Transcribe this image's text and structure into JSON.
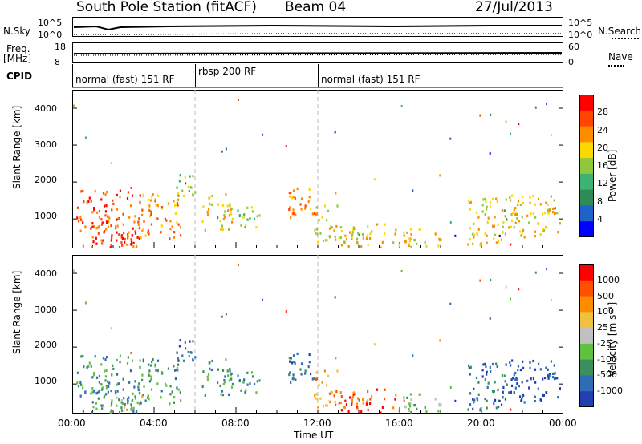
{
  "header": {
    "station": "South Pole Station (fitACF)",
    "beam": "Beam 04",
    "date": "27/Jul/2013"
  },
  "top_strip": {
    "left_label_1": "N.Sky",
    "left_label_2": "Freq.",
    "left_label_3": "[MHz]",
    "cpid_label": "CPID",
    "right_label_1": "N.Search",
    "right_label_2": "Nave",
    "sky_ticks": [
      "10^5",
      "10^0"
    ],
    "search_ticks": [
      "10^5",
      "10^0"
    ],
    "freq_ticks": [
      "18",
      "8"
    ],
    "nave_ticks": [
      "60",
      "0"
    ]
  },
  "cpid_segments": [
    {
      "label": "normal (fast) 151 RF",
      "start_hour": 0
    },
    {
      "label": "rbsp 200 RF",
      "start_hour": 6
    },
    {
      "label": "normal (fast) 151 RF",
      "start_hour": 12
    }
  ],
  "x_axis": {
    "label": "Time UT",
    "ticks": [
      "00:00",
      "04:00",
      "08:00",
      "12:00",
      "16:00",
      "20:00",
      "00:00"
    ],
    "range_hours": [
      0,
      24
    ]
  },
  "panels": [
    {
      "ylabel": "Slant Range [km]",
      "yticks": [
        "1000",
        "2000",
        "3000",
        "4000"
      ],
      "colorbar_label": "Power [dB]",
      "colorbar_ticks": [
        "28",
        "24",
        "20",
        "16",
        "12",
        "8",
        "4"
      ]
    },
    {
      "ylabel": "Slant Range [km]",
      "yticks": [
        "1000",
        "2000",
        "3000",
        "4000"
      ],
      "colorbar_label": "Velocity [m s⁻¹]",
      "colorbar_ticks": [
        "1000",
        "500",
        "100",
        "25",
        "-25",
        "-100",
        "-500",
        "-1000"
      ]
    }
  ],
  "chart_data": {
    "type": "heatmap",
    "xlim": [
      0,
      24
    ],
    "ylim": [
      200,
      4500
    ],
    "mode_change_hours": [
      6,
      12
    ],
    "power_colors": [
      "#0000ff",
      "#1e64c8",
      "#2e8b57",
      "#3cb371",
      "#90c83c",
      "#ffd700",
      "#ff8c00",
      "#ff4500",
      "#ff0000"
    ],
    "velocity_colors": [
      "#2040b0",
      "#2e6db4",
      "#3a8f5a",
      "#60c040",
      "#c0c0c0",
      "#f0c040",
      "#ff8c00",
      "#ff5000",
      "#ff0000"
    ],
    "echo_regions": [
      {
        "t0": 0.2,
        "t1": 3.3,
        "r0": 250,
        "r1": 1800,
        "power_level": 7,
        "velocity_level": 2
      },
      {
        "t0": 1.5,
        "t1": 3.5,
        "r0": 250,
        "r1": 700,
        "power_level": 8,
        "velocity_level": 3
      },
      {
        "t0": 3.3,
        "t1": 5.3,
        "r0": 500,
        "r1": 1700,
        "power_level": 6,
        "velocity_level": 2
      },
      {
        "t0": 5.0,
        "t1": 6.0,
        "r0": 1600,
        "r1": 2300,
        "power_level": 4,
        "velocity_level": 1
      },
      {
        "t0": 6.3,
        "t1": 7.8,
        "r0": 700,
        "r1": 1700,
        "power_level": 5,
        "velocity_level": 2
      },
      {
        "t0": 8.0,
        "t1": 9.2,
        "r0": 800,
        "r1": 1500,
        "power_level": 4,
        "velocity_level": 2
      },
      {
        "t0": 10.5,
        "t1": 11.8,
        "r0": 1000,
        "r1": 1900,
        "power_level": 6,
        "velocity_level": 1
      },
      {
        "t0": 11.8,
        "t1": 13.0,
        "r0": 400,
        "r1": 1400,
        "power_level": 5,
        "velocity_level": 6
      },
      {
        "t0": 13.0,
        "t1": 16.0,
        "r0": 250,
        "r1": 900,
        "power_level": 5,
        "velocity_level": 7
      },
      {
        "t0": 16.0,
        "t1": 18.0,
        "r0": 250,
        "r1": 800,
        "power_level": 5,
        "velocity_level": 3
      },
      {
        "t0": 19.2,
        "t1": 21.0,
        "r0": 300,
        "r1": 1600,
        "power_level": 5,
        "velocity_level": 1
      },
      {
        "t0": 21.0,
        "t1": 23.8,
        "r0": 500,
        "r1": 1700,
        "power_level": 5,
        "velocity_level": 0
      }
    ]
  }
}
